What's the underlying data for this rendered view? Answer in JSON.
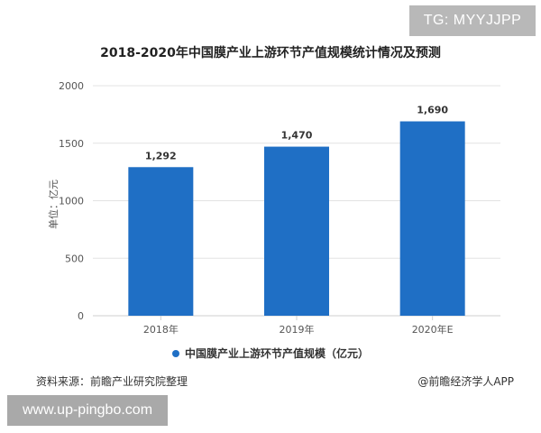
{
  "badge": "TG: MYYJJPP",
  "chart_data": {
    "type": "bar",
    "title": "2018-2020年中国膜产业上游环节产值规模统计情况及预测",
    "ylabel": "单位：亿元",
    "xlabel": "",
    "categories": [
      "2018年",
      "2019年",
      "2020年E"
    ],
    "series": [
      {
        "name": "中国膜产业上游环节产值规模（亿元）",
        "values": [
          1292,
          1470,
          1690
        ],
        "value_labels": [
          "1,292",
          "1,470",
          "1,690"
        ]
      }
    ],
    "ylim": [
      0,
      2000
    ],
    "yticks": [
      0,
      500,
      1000,
      1500,
      2000
    ],
    "ytick_labels": [
      "0",
      "500",
      "1000",
      "1500",
      "2000"
    ],
    "grid": true,
    "legend_position": "bottom",
    "bar_color": "#1f6fc5"
  },
  "footer": {
    "source": "资料来源：前瞻产业研究院整理",
    "credit": "@前瞻经济学人APP"
  },
  "url_badge": "www.up-pingbo.com",
  "colors": {
    "bar": "#1f6fc5",
    "grid": "#e3e3e3",
    "axis": "#cfcfcf",
    "badge": "#b8b8b8"
  }
}
